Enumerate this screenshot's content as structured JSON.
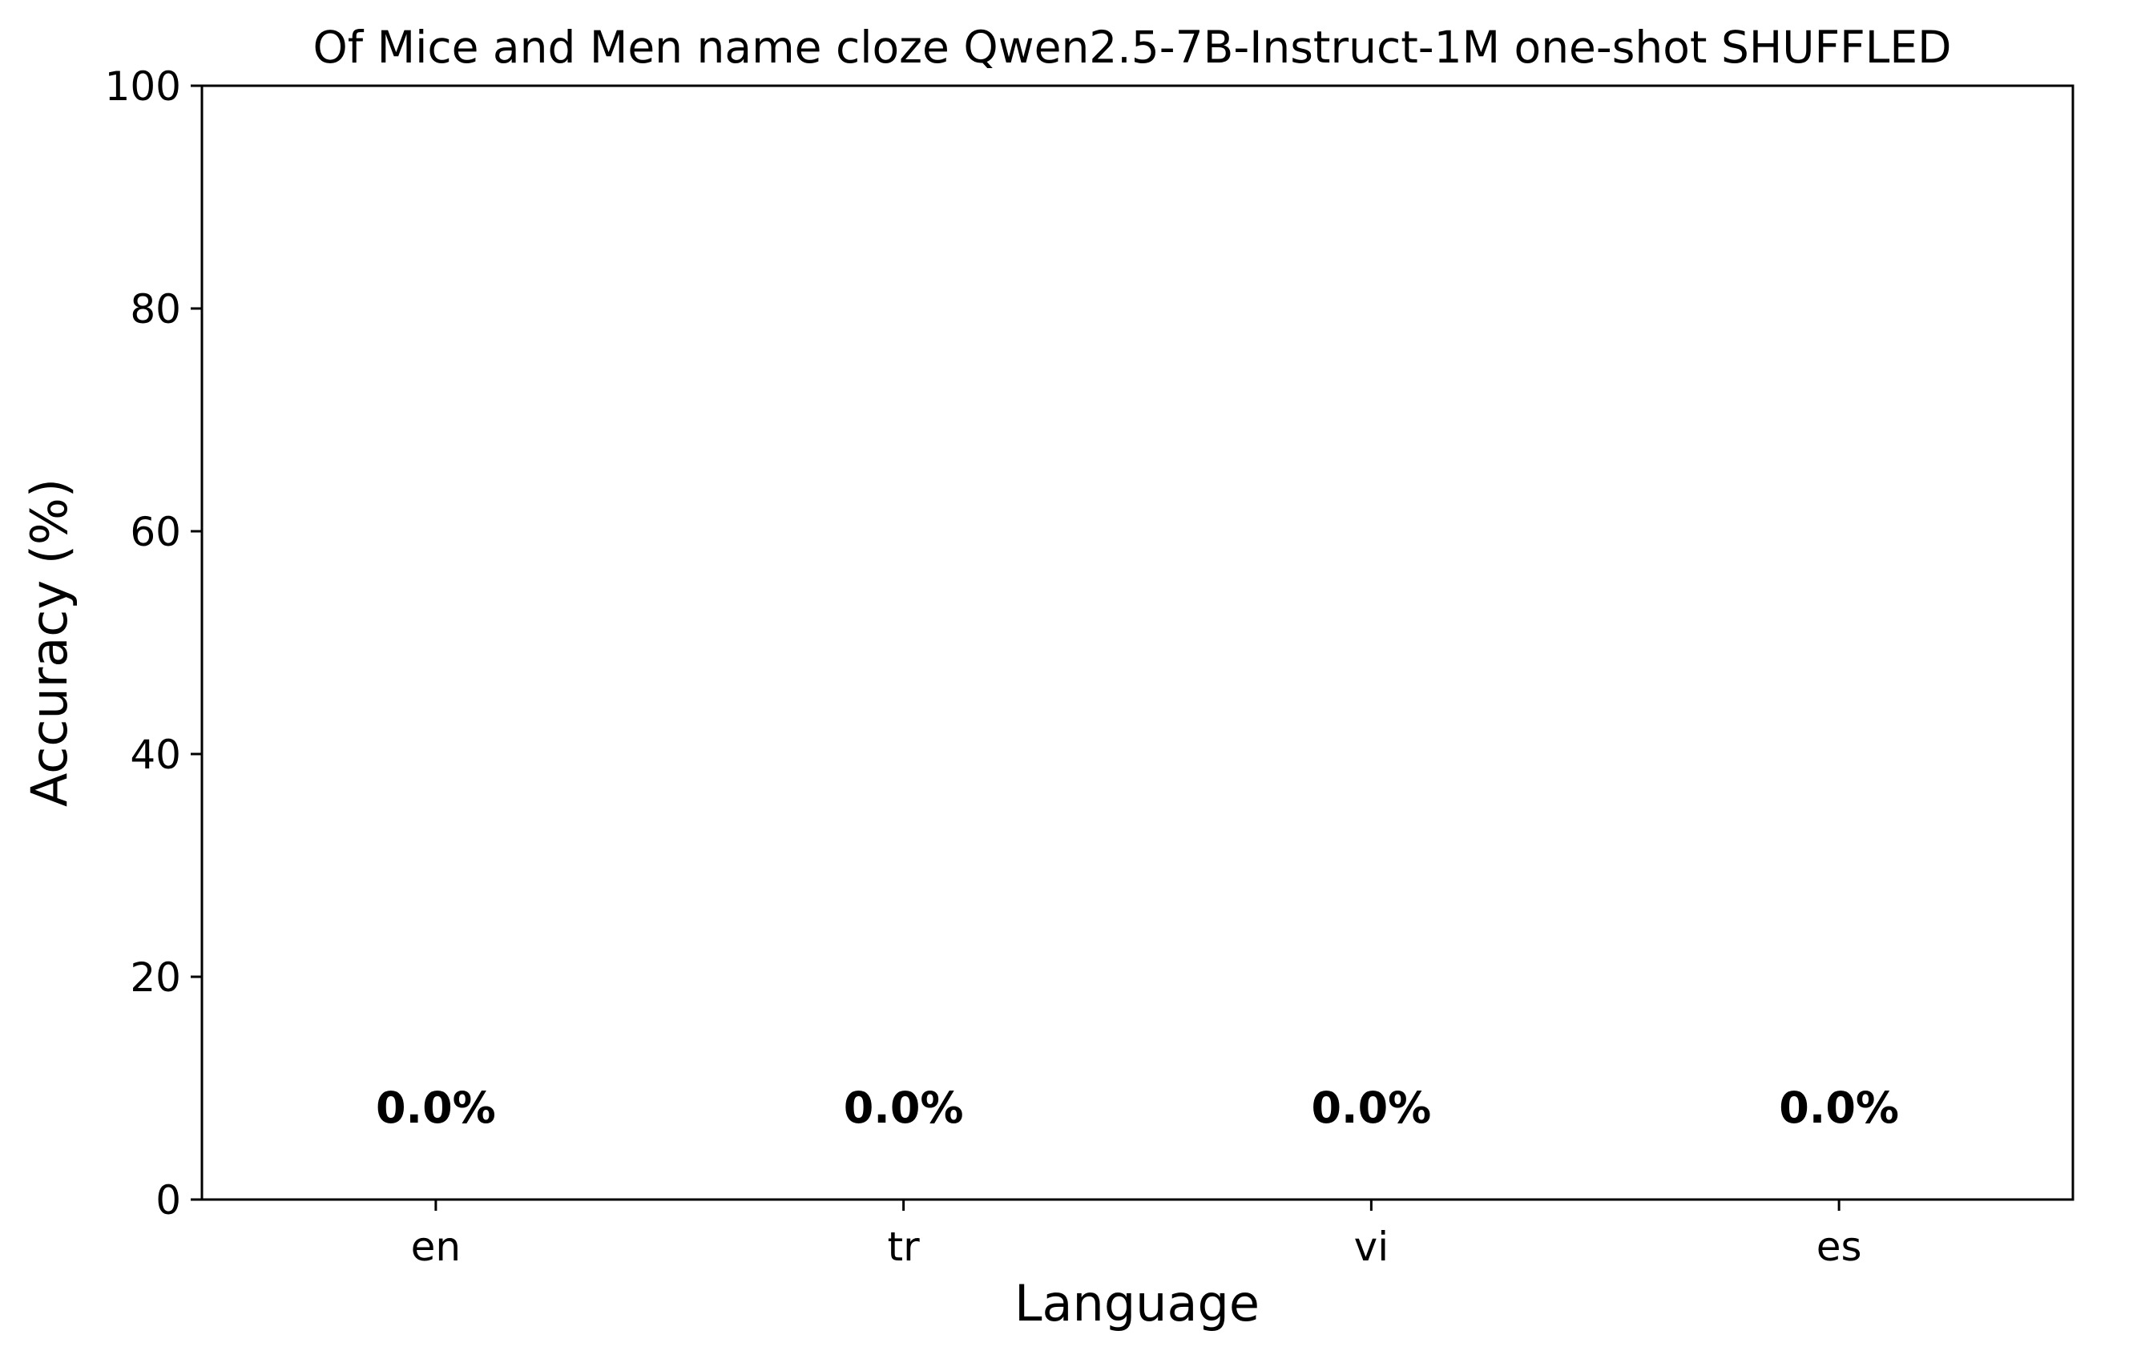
{
  "chart_data": {
    "type": "bar",
    "title": "Of Mice and Men name cloze Qwen2.5-7B-Instruct-1M one-shot SHUFFLED",
    "xlabel": "Language",
    "ylabel": "Accuracy (%)",
    "categories": [
      "en",
      "tr",
      "vi",
      "es"
    ],
    "values": [
      0.0,
      0.0,
      0.0,
      0.0
    ],
    "value_labels": [
      "0.0%",
      "0.0%",
      "0.0%",
      "0.0%"
    ],
    "ylim": [
      0,
      100
    ],
    "yticks": [
      0,
      20,
      40,
      60,
      80,
      100
    ],
    "ytick_labels": [
      "0",
      "20",
      "40",
      "60",
      "80",
      "100"
    ],
    "grid": false,
    "legend": "none",
    "bar_color": "#1f77b4"
  }
}
